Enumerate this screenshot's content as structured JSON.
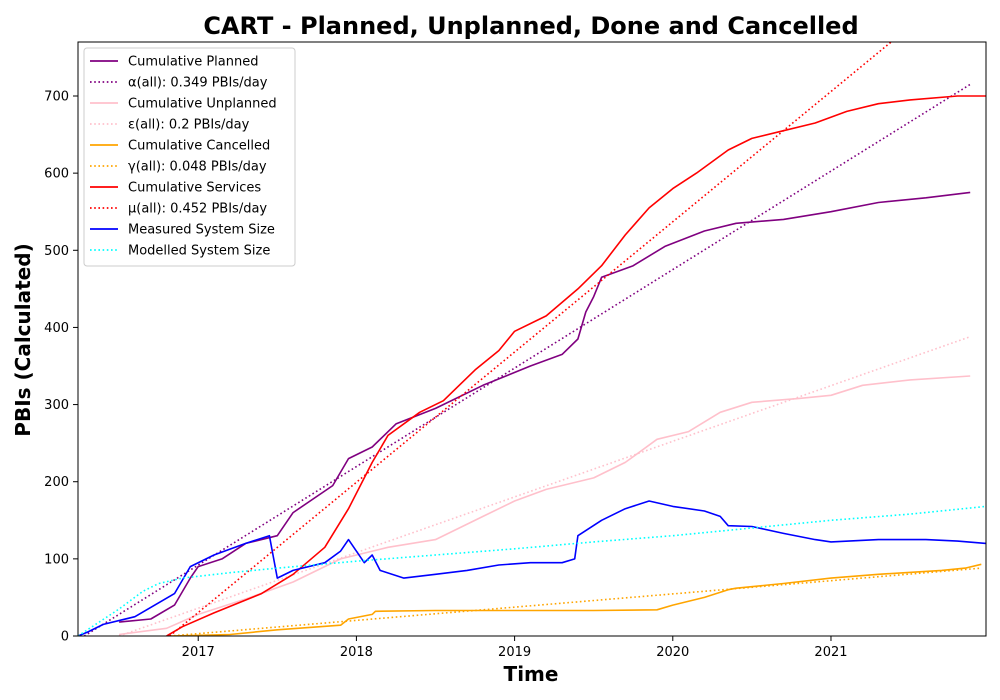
{
  "chart_data": {
    "type": "line",
    "title": "CART - Planned, Unplanned, Done  and Cancelled",
    "xlabel": "Time",
    "ylabel": "PBIs (Calculated)",
    "xlim": [
      2016.24,
      2021.98
    ],
    "ylim": [
      0,
      770
    ],
    "x_ticks": [
      {
        "value": 2017.0,
        "label": "2017"
      },
      {
        "value": 2018.0,
        "label": "2018"
      },
      {
        "value": 2019.0,
        "label": "2019"
      },
      {
        "value": 2020.0,
        "label": "2020"
      },
      {
        "value": 2021.0,
        "label": "2021"
      }
    ],
    "y_ticks": [
      {
        "value": 0,
        "label": "0"
      },
      {
        "value": 100,
        "label": "100"
      },
      {
        "value": 200,
        "label": "200"
      },
      {
        "value": 300,
        "label": "300"
      },
      {
        "value": 400,
        "label": "400"
      },
      {
        "value": 500,
        "label": "500"
      },
      {
        "value": 600,
        "label": "600"
      },
      {
        "value": 700,
        "label": "700"
      }
    ],
    "grid": false,
    "legend_position": "top-left",
    "series": [
      {
        "name": "Cumulative Planned",
        "color": "#800080",
        "style": "solid",
        "points": [
          [
            2016.5,
            18
          ],
          [
            2016.7,
            22
          ],
          [
            2016.85,
            40
          ],
          [
            2016.95,
            75
          ],
          [
            2017.0,
            90
          ],
          [
            2017.15,
            100
          ],
          [
            2017.3,
            120
          ],
          [
            2017.5,
            130
          ],
          [
            2017.6,
            160
          ],
          [
            2017.85,
            195
          ],
          [
            2017.95,
            230
          ],
          [
            2018.1,
            245
          ],
          [
            2018.25,
            275
          ],
          [
            2018.5,
            295
          ],
          [
            2018.8,
            325
          ],
          [
            2019.1,
            350
          ],
          [
            2019.3,
            365
          ],
          [
            2019.4,
            385
          ],
          [
            2019.45,
            420
          ],
          [
            2019.5,
            440
          ],
          [
            2019.55,
            465
          ],
          [
            2019.75,
            480
          ],
          [
            2019.95,
            505
          ],
          [
            2020.2,
            525
          ],
          [
            2020.4,
            535
          ],
          [
            2020.7,
            540
          ],
          [
            2021.0,
            550
          ],
          [
            2021.3,
            562
          ],
          [
            2021.6,
            568
          ],
          [
            2021.88,
            575
          ]
        ]
      },
      {
        "name": "α(all): 0.349 PBIs/day",
        "color": "#800080",
        "style": "dotted",
        "points": [
          [
            2016.28,
            0
          ],
          [
            2021.88,
            715
          ]
        ]
      },
      {
        "name": "Cumulative Unplanned",
        "color": "#FFC0CB",
        "style": "solid",
        "points": [
          [
            2016.5,
            2
          ],
          [
            2016.8,
            10
          ],
          [
            2017.0,
            28
          ],
          [
            2017.3,
            48
          ],
          [
            2017.6,
            70
          ],
          [
            2017.9,
            100
          ],
          [
            2018.2,
            115
          ],
          [
            2018.5,
            125
          ],
          [
            2018.8,
            155
          ],
          [
            2019.0,
            175
          ],
          [
            2019.2,
            190
          ],
          [
            2019.5,
            205
          ],
          [
            2019.7,
            225
          ],
          [
            2019.9,
            255
          ],
          [
            2020.1,
            265
          ],
          [
            2020.3,
            290
          ],
          [
            2020.5,
            303
          ],
          [
            2020.8,
            308
          ],
          [
            2021.0,
            312
          ],
          [
            2021.2,
            325
          ],
          [
            2021.5,
            332
          ],
          [
            2021.88,
            337
          ]
        ]
      },
      {
        "name": "ε(all): 0.2 PBIs/day",
        "color": "#FFC0CB",
        "style": "dotted",
        "points": [
          [
            2016.5,
            0
          ],
          [
            2021.88,
            388
          ]
        ]
      },
      {
        "name": "Cumulative Cancelled",
        "color": "#FFA500",
        "style": "solid",
        "points": [
          [
            2016.82,
            0
          ],
          [
            2017.2,
            2
          ],
          [
            2017.5,
            8
          ],
          [
            2017.9,
            14
          ],
          [
            2017.95,
            22
          ],
          [
            2018.1,
            28
          ],
          [
            2018.12,
            32
          ],
          [
            2018.5,
            33
          ],
          [
            2019.0,
            33
          ],
          [
            2019.5,
            33
          ],
          [
            2019.9,
            34
          ],
          [
            2020.0,
            40
          ],
          [
            2020.2,
            50
          ],
          [
            2020.35,
            60
          ],
          [
            2020.4,
            62
          ],
          [
            2020.7,
            68
          ],
          [
            2021.0,
            75
          ],
          [
            2021.3,
            80
          ],
          [
            2021.7,
            85
          ],
          [
            2021.85,
            88
          ],
          [
            2021.95,
            93
          ]
        ]
      },
      {
        "name": "γ(all): 0.048 PBIs/day",
        "color": "#FFA500",
        "style": "dotted",
        "points": [
          [
            2016.82,
            0
          ],
          [
            2021.95,
            88
          ]
        ]
      },
      {
        "name": "Cumulative Services",
        "color": "#FF0000",
        "style": "solid",
        "points": [
          [
            2016.8,
            0
          ],
          [
            2016.9,
            12
          ],
          [
            2017.1,
            30
          ],
          [
            2017.4,
            55
          ],
          [
            2017.6,
            80
          ],
          [
            2017.8,
            115
          ],
          [
            2017.95,
            165
          ],
          [
            2018.1,
            225
          ],
          [
            2018.2,
            260
          ],
          [
            2018.4,
            290
          ],
          [
            2018.55,
            305
          ],
          [
            2018.75,
            345
          ],
          [
            2018.9,
            370
          ],
          [
            2019.0,
            395
          ],
          [
            2019.2,
            415
          ],
          [
            2019.4,
            450
          ],
          [
            2019.55,
            480
          ],
          [
            2019.7,
            520
          ],
          [
            2019.85,
            555
          ],
          [
            2020.0,
            580
          ],
          [
            2020.15,
            600
          ],
          [
            2020.35,
            630
          ],
          [
            2020.5,
            645
          ],
          [
            2020.7,
            655
          ],
          [
            2020.9,
            665
          ],
          [
            2021.1,
            680
          ],
          [
            2021.3,
            690
          ],
          [
            2021.5,
            695
          ],
          [
            2021.8,
            700
          ],
          [
            2021.98,
            700
          ]
        ]
      },
      {
        "name": "μ(all): 0.452 PBIs/day",
        "color": "#FF0000",
        "style": "dotted",
        "points": [
          [
            2016.82,
            0
          ],
          [
            2021.38,
            770
          ]
        ]
      },
      {
        "name": "Measured System Size",
        "color": "#0000FF",
        "style": "solid",
        "points": [
          [
            2016.24,
            0
          ],
          [
            2016.3,
            5
          ],
          [
            2016.4,
            15
          ],
          [
            2016.6,
            25
          ],
          [
            2016.85,
            55
          ],
          [
            2016.95,
            90
          ],
          [
            2017.1,
            105
          ],
          [
            2017.3,
            120
          ],
          [
            2017.45,
            130
          ],
          [
            2017.5,
            75
          ],
          [
            2017.6,
            85
          ],
          [
            2017.8,
            95
          ],
          [
            2017.9,
            110
          ],
          [
            2017.95,
            125
          ],
          [
            2018.05,
            95
          ],
          [
            2018.1,
            105
          ],
          [
            2018.15,
            85
          ],
          [
            2018.3,
            75
          ],
          [
            2018.5,
            80
          ],
          [
            2018.7,
            85
          ],
          [
            2018.9,
            92
          ],
          [
            2019.1,
            95
          ],
          [
            2019.3,
            95
          ],
          [
            2019.38,
            100
          ],
          [
            2019.4,
            130
          ],
          [
            2019.55,
            150
          ],
          [
            2019.7,
            165
          ],
          [
            2019.85,
            175
          ],
          [
            2020.0,
            168
          ],
          [
            2020.2,
            162
          ],
          [
            2020.3,
            155
          ],
          [
            2020.35,
            143
          ],
          [
            2020.5,
            142
          ],
          [
            2020.7,
            133
          ],
          [
            2020.9,
            125
          ],
          [
            2021.0,
            122
          ],
          [
            2021.3,
            125
          ],
          [
            2021.6,
            125
          ],
          [
            2021.8,
            123
          ],
          [
            2021.98,
            120
          ]
        ]
      },
      {
        "name": "Modelled System Size",
        "color": "#00FFFF",
        "style": "dotted",
        "points": [
          [
            2016.24,
            0
          ],
          [
            2016.5,
            35
          ],
          [
            2016.65,
            58
          ],
          [
            2016.75,
            68
          ],
          [
            2016.9,
            75
          ],
          [
            2017.2,
            82
          ],
          [
            2017.5,
            88
          ],
          [
            2018.0,
            97
          ],
          [
            2018.5,
            105
          ],
          [
            2019.0,
            113
          ],
          [
            2019.5,
            122
          ],
          [
            2020.0,
            130
          ],
          [
            2020.5,
            140
          ],
          [
            2021.0,
            150
          ],
          [
            2021.5,
            158
          ],
          [
            2021.98,
            168
          ]
        ]
      }
    ]
  }
}
